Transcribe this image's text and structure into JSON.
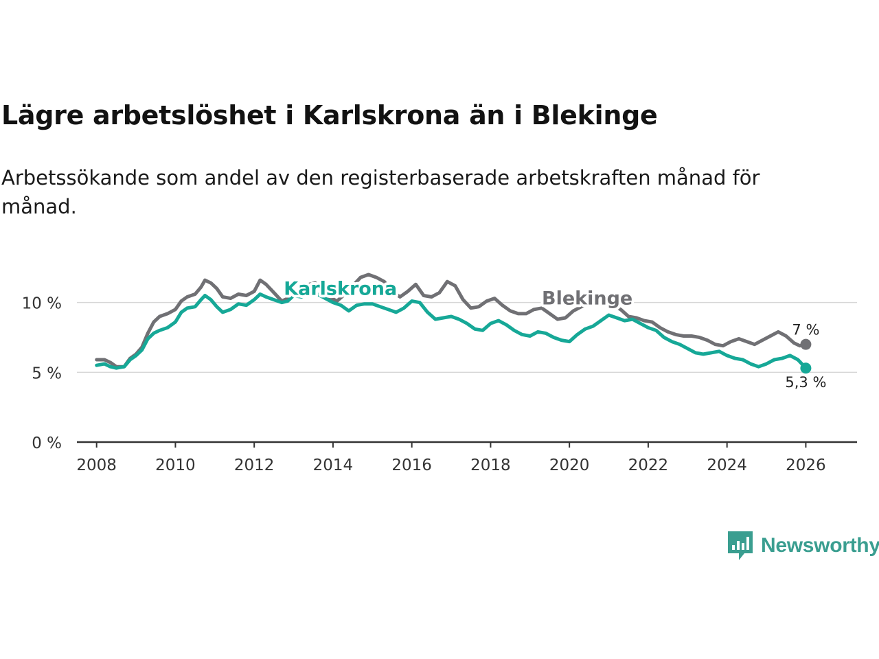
{
  "header": {
    "title": "Lägre arbetslöshet i Karlskrona än i Blekinge",
    "subtitle": "Arbetssökande som andel av den registerbaserade arbetskraften månad för månad."
  },
  "brand": {
    "name": "Newsworthy",
    "logo_color": "#3a9e90"
  },
  "chart_data": {
    "type": "line",
    "title": "Lägre arbetslöshet i Karlskrona än i Blekinge",
    "subtitle": "Arbetssökande som andel av den registerbaserade arbetskraften månad för månad.",
    "xlabel": "",
    "ylabel": "",
    "xlim": [
      2007.5,
      2027.3
    ],
    "ylim": [
      0,
      12
    ],
    "x_ticks": [
      {
        "value": 2008,
        "label": "2008"
      },
      {
        "value": 2010,
        "label": "2010"
      },
      {
        "value": 2012,
        "label": "2012"
      },
      {
        "value": 2014,
        "label": "2014"
      },
      {
        "value": 2016,
        "label": "2016"
      },
      {
        "value": 2018,
        "label": "2018"
      },
      {
        "value": 2020,
        "label": "2020"
      },
      {
        "value": 2022,
        "label": "2022"
      },
      {
        "value": 2024,
        "label": "2024"
      },
      {
        "value": 2026,
        "label": "2026"
      }
    ],
    "y_ticks": [
      {
        "value": 0,
        "label": "0 %"
      },
      {
        "value": 5,
        "label": "5 %"
      },
      {
        "value": 10,
        "label": "10 %"
      }
    ],
    "grid": true,
    "series": [
      {
        "name": "Blekinge",
        "color": "#707074",
        "label_at": [
          2019.3,
          10.3
        ],
        "end_label": "7 %",
        "points": [
          [
            2008.0,
            5.9
          ],
          [
            2008.2,
            5.9
          ],
          [
            2008.35,
            5.7
          ],
          [
            2008.5,
            5.4
          ],
          [
            2008.7,
            5.4
          ],
          [
            2008.85,
            6.0
          ],
          [
            2009.0,
            6.3
          ],
          [
            2009.15,
            6.8
          ],
          [
            2009.3,
            7.8
          ],
          [
            2009.45,
            8.6
          ],
          [
            2009.6,
            9.0
          ],
          [
            2009.8,
            9.2
          ],
          [
            2010.0,
            9.5
          ],
          [
            2010.15,
            10.1
          ],
          [
            2010.3,
            10.4
          ],
          [
            2010.5,
            10.6
          ],
          [
            2010.65,
            11.1
          ],
          [
            2010.75,
            11.6
          ],
          [
            2010.9,
            11.4
          ],
          [
            2011.05,
            11.0
          ],
          [
            2011.2,
            10.4
          ],
          [
            2011.4,
            10.3
          ],
          [
            2011.6,
            10.6
          ],
          [
            2011.8,
            10.5
          ],
          [
            2012.0,
            10.8
          ],
          [
            2012.15,
            11.6
          ],
          [
            2012.3,
            11.3
          ],
          [
            2012.5,
            10.7
          ],
          [
            2012.7,
            10.1
          ],
          [
            2012.85,
            10.3
          ],
          [
            2013.0,
            10.7
          ],
          [
            2013.2,
            10.6
          ],
          [
            2013.4,
            11.3
          ],
          [
            2013.55,
            11.4
          ],
          [
            2013.7,
            11.0
          ],
          [
            2013.9,
            10.4
          ],
          [
            2014.1,
            10.1
          ],
          [
            2014.3,
            10.6
          ],
          [
            2014.5,
            11.2
          ],
          [
            2014.7,
            11.8
          ],
          [
            2014.9,
            12.0
          ],
          [
            2015.1,
            11.8
          ],
          [
            2015.3,
            11.5
          ],
          [
            2015.5,
            10.8
          ],
          [
            2015.7,
            10.4
          ],
          [
            2015.9,
            10.8
          ],
          [
            2016.1,
            11.3
          ],
          [
            2016.3,
            10.5
          ],
          [
            2016.5,
            10.4
          ],
          [
            2016.7,
            10.7
          ],
          [
            2016.9,
            11.5
          ],
          [
            2017.1,
            11.2
          ],
          [
            2017.3,
            10.2
          ],
          [
            2017.5,
            9.6
          ],
          [
            2017.7,
            9.7
          ],
          [
            2017.9,
            10.1
          ],
          [
            2018.1,
            10.3
          ],
          [
            2018.3,
            9.8
          ],
          [
            2018.5,
            9.4
          ],
          [
            2018.7,
            9.2
          ],
          [
            2018.9,
            9.2
          ],
          [
            2019.1,
            9.5
          ],
          [
            2019.3,
            9.6
          ],
          [
            2019.5,
            9.2
          ],
          [
            2019.7,
            8.8
          ],
          [
            2019.9,
            8.9
          ],
          [
            2020.1,
            9.4
          ],
          [
            2020.3,
            9.7
          ],
          [
            2020.5,
            10.0
          ],
          [
            2020.7,
            10.3
          ],
          [
            2020.9,
            10.2
          ],
          [
            2021.1,
            9.8
          ],
          [
            2021.3,
            9.5
          ],
          [
            2021.5,
            9.0
          ],
          [
            2021.7,
            8.9
          ],
          [
            2021.9,
            8.7
          ],
          [
            2022.1,
            8.6
          ],
          [
            2022.3,
            8.2
          ],
          [
            2022.5,
            7.9
          ],
          [
            2022.7,
            7.7
          ],
          [
            2022.9,
            7.6
          ],
          [
            2023.1,
            7.6
          ],
          [
            2023.3,
            7.5
          ],
          [
            2023.5,
            7.3
          ],
          [
            2023.7,
            7.0
          ],
          [
            2023.9,
            6.9
          ],
          [
            2024.1,
            7.2
          ],
          [
            2024.3,
            7.4
          ],
          [
            2024.5,
            7.2
          ],
          [
            2024.7,
            7.0
          ],
          [
            2024.9,
            7.3
          ],
          [
            2025.1,
            7.6
          ],
          [
            2025.3,
            7.9
          ],
          [
            2025.5,
            7.6
          ],
          [
            2025.7,
            7.1
          ],
          [
            2025.85,
            6.9
          ],
          [
            2026.0,
            7.0
          ]
        ]
      },
      {
        "name": "Karlskrona",
        "color": "#16a897",
        "label_at": [
          2012.75,
          11.0
        ],
        "end_label": "5,3 %",
        "points": [
          [
            2008.0,
            5.5
          ],
          [
            2008.2,
            5.6
          ],
          [
            2008.35,
            5.4
          ],
          [
            2008.5,
            5.3
          ],
          [
            2008.7,
            5.4
          ],
          [
            2008.85,
            5.9
          ],
          [
            2009.0,
            6.2
          ],
          [
            2009.15,
            6.6
          ],
          [
            2009.3,
            7.4
          ],
          [
            2009.45,
            7.8
          ],
          [
            2009.6,
            8.0
          ],
          [
            2009.8,
            8.2
          ],
          [
            2010.0,
            8.6
          ],
          [
            2010.15,
            9.3
          ],
          [
            2010.3,
            9.6
          ],
          [
            2010.5,
            9.7
          ],
          [
            2010.65,
            10.2
          ],
          [
            2010.75,
            10.5
          ],
          [
            2010.9,
            10.2
          ],
          [
            2011.05,
            9.7
          ],
          [
            2011.2,
            9.3
          ],
          [
            2011.4,
            9.5
          ],
          [
            2011.6,
            9.9
          ],
          [
            2011.8,
            9.8
          ],
          [
            2012.0,
            10.2
          ],
          [
            2012.15,
            10.6
          ],
          [
            2012.3,
            10.4
          ],
          [
            2012.5,
            10.2
          ],
          [
            2012.7,
            10.0
          ],
          [
            2012.85,
            10.1
          ],
          [
            2013.0,
            10.5
          ],
          [
            2013.2,
            10.4
          ],
          [
            2013.4,
            10.7
          ],
          [
            2013.6,
            10.6
          ],
          [
            2013.8,
            10.3
          ],
          [
            2014.0,
            10.0
          ],
          [
            2014.2,
            9.8
          ],
          [
            2014.4,
            9.4
          ],
          [
            2014.6,
            9.8
          ],
          [
            2014.8,
            9.9
          ],
          [
            2015.0,
            9.9
          ],
          [
            2015.2,
            9.7
          ],
          [
            2015.4,
            9.5
          ],
          [
            2015.6,
            9.3
          ],
          [
            2015.8,
            9.6
          ],
          [
            2016.0,
            10.1
          ],
          [
            2016.2,
            10.0
          ],
          [
            2016.4,
            9.3
          ],
          [
            2016.6,
            8.8
          ],
          [
            2016.8,
            8.9
          ],
          [
            2017.0,
            9.0
          ],
          [
            2017.2,
            8.8
          ],
          [
            2017.4,
            8.5
          ],
          [
            2017.6,
            8.1
          ],
          [
            2017.8,
            8.0
          ],
          [
            2018.0,
            8.5
          ],
          [
            2018.2,
            8.7
          ],
          [
            2018.4,
            8.4
          ],
          [
            2018.6,
            8.0
          ],
          [
            2018.8,
            7.7
          ],
          [
            2019.0,
            7.6
          ],
          [
            2019.2,
            7.9
          ],
          [
            2019.4,
            7.8
          ],
          [
            2019.6,
            7.5
          ],
          [
            2019.8,
            7.3
          ],
          [
            2020.0,
            7.2
          ],
          [
            2020.2,
            7.7
          ],
          [
            2020.4,
            8.1
          ],
          [
            2020.6,
            8.3
          ],
          [
            2020.8,
            8.7
          ],
          [
            2021.0,
            9.1
          ],
          [
            2021.2,
            8.9
          ],
          [
            2021.4,
            8.7
          ],
          [
            2021.6,
            8.8
          ],
          [
            2021.8,
            8.5
          ],
          [
            2022.0,
            8.2
          ],
          [
            2022.2,
            8.0
          ],
          [
            2022.4,
            7.5
          ],
          [
            2022.6,
            7.2
          ],
          [
            2022.8,
            7.0
          ],
          [
            2023.0,
            6.7
          ],
          [
            2023.2,
            6.4
          ],
          [
            2023.4,
            6.3
          ],
          [
            2023.6,
            6.4
          ],
          [
            2023.8,
            6.5
          ],
          [
            2024.0,
            6.2
          ],
          [
            2024.2,
            6.0
          ],
          [
            2024.4,
            5.9
          ],
          [
            2024.6,
            5.6
          ],
          [
            2024.8,
            5.4
          ],
          [
            2025.0,
            5.6
          ],
          [
            2025.2,
            5.9
          ],
          [
            2025.4,
            6.0
          ],
          [
            2025.6,
            6.2
          ],
          [
            2025.8,
            5.9
          ],
          [
            2025.9,
            5.6
          ],
          [
            2026.0,
            5.3
          ]
        ]
      }
    ]
  }
}
